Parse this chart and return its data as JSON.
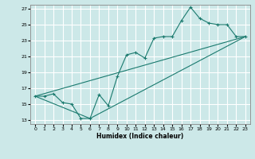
{
  "xlabel": "Humidex (Indice chaleur)",
  "ylabel": "",
  "bg_color": "#cce8e8",
  "grid_color": "#ffffff",
  "line_color": "#1a7a6e",
  "xlim": [
    -0.5,
    23.5
  ],
  "ylim": [
    12.5,
    27.5
  ],
  "xticks": [
    0,
    1,
    2,
    3,
    4,
    5,
    6,
    7,
    8,
    9,
    10,
    11,
    12,
    13,
    14,
    15,
    16,
    17,
    18,
    19,
    20,
    21,
    22,
    23
  ],
  "yticks": [
    13,
    15,
    17,
    19,
    21,
    23,
    25,
    27
  ],
  "series1_x": [
    0,
    1,
    2,
    3,
    4,
    5,
    6,
    7,
    8,
    9,
    10,
    11,
    12,
    13,
    14,
    15,
    16,
    17,
    18,
    19,
    20,
    21,
    22,
    23
  ],
  "series1_y": [
    16.0,
    16.0,
    16.3,
    15.2,
    15.0,
    13.2,
    13.2,
    16.2,
    14.8,
    18.5,
    21.2,
    21.5,
    20.8,
    23.3,
    23.5,
    23.5,
    25.5,
    27.2,
    25.8,
    25.2,
    25.0,
    25.0,
    23.5,
    23.5
  ],
  "series2_x": [
    0,
    23
  ],
  "series2_y": [
    16.0,
    23.5
  ],
  "series3_x": [
    0,
    6,
    23
  ],
  "series3_y": [
    16.0,
    13.2,
    23.5
  ]
}
